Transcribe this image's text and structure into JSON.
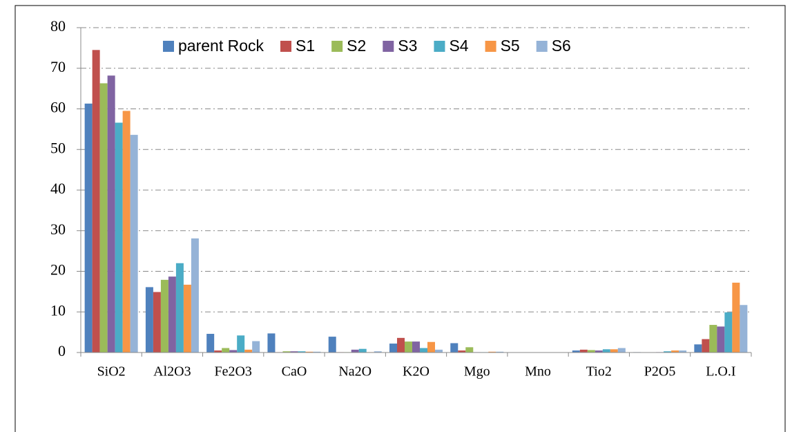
{
  "chart_data": {
    "type": "bar",
    "categories": [
      "SiO2",
      "Al2O3",
      "Fe2O3",
      "CaO",
      "Na2O",
      "K2O",
      "Mgo",
      "Mno",
      "Tio2",
      "P2O5",
      "L.O.I"
    ],
    "series": [
      {
        "name": "parent Rock",
        "color": "#4f81bd",
        "values": [
          61.3,
          16.1,
          4.6,
          4.7,
          3.9,
          2.2,
          2.3,
          0.05,
          0.5,
          0.1,
          2.0
        ]
      },
      {
        "name": "S1",
        "color": "#c0504d",
        "values": [
          74.5,
          14.9,
          0.5,
          0.1,
          0.1,
          3.6,
          0.5,
          0.02,
          0.7,
          0.05,
          3.3
        ]
      },
      {
        "name": "S2",
        "color": "#9bbb59",
        "values": [
          66.3,
          17.9,
          1.1,
          0.3,
          0.1,
          2.7,
          1.3,
          0.02,
          0.6,
          0.05,
          6.8
        ]
      },
      {
        "name": "S3",
        "color": "#8064a2",
        "values": [
          68.2,
          18.7,
          0.6,
          0.3,
          0.7,
          2.7,
          0.1,
          0.02,
          0.5,
          0.1,
          6.4
        ]
      },
      {
        "name": "S4",
        "color": "#4bacc6",
        "values": [
          56.6,
          22.0,
          4.2,
          0.3,
          0.9,
          1.1,
          0.1,
          0.02,
          0.8,
          0.3,
          9.9
        ]
      },
      {
        "name": "S5",
        "color": "#f79646",
        "values": [
          59.5,
          16.7,
          0.7,
          0.2,
          0.1,
          2.6,
          0.2,
          0.02,
          0.8,
          0.5,
          17.2
        ]
      },
      {
        "name": "S6",
        "color": "#95b3d7",
        "values": [
          53.6,
          28.1,
          2.8,
          0.2,
          0.3,
          0.7,
          0.2,
          0.02,
          1.1,
          0.5,
          11.7
        ]
      }
    ],
    "ylim": [
      0,
      80
    ],
    "yticks": [
      0,
      10,
      20,
      30,
      40,
      50,
      60,
      70,
      80
    ],
    "grid": true,
    "legend": "top"
  }
}
